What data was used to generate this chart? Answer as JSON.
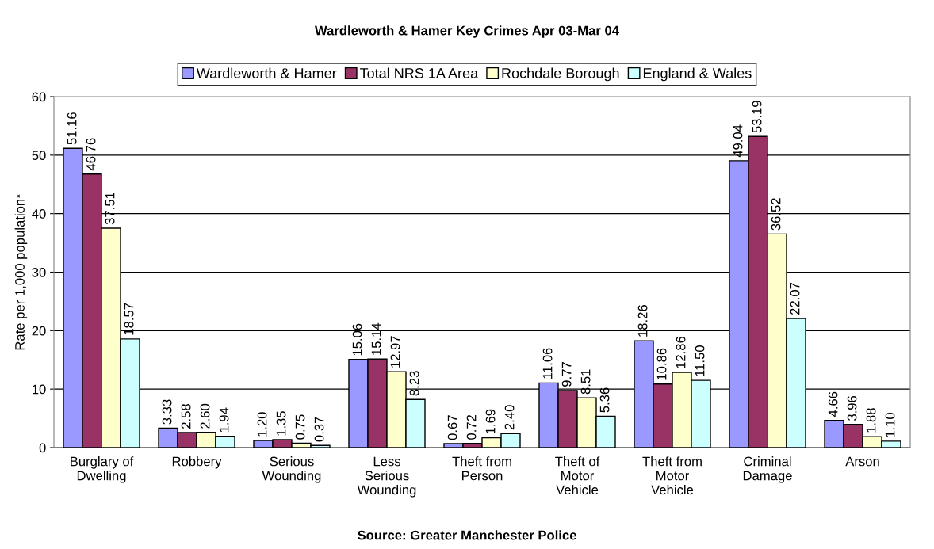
{
  "chart_data": {
    "type": "bar",
    "title": "Wardleworth & Hamer Key Crimes Apr 03-Mar 04",
    "ylabel": "Rate per 1,000 population*",
    "annotations": [
      "Source: Greater Manchester Police"
    ],
    "categories": [
      "Burglary of\nDwelling",
      "Robbery",
      "Serious\nWounding",
      "Less\nSerious\nWounding",
      "Theft from\nPerson",
      "Theft of\nMotor\nVehicle",
      "Theft from\nMotor\nVehicle",
      "Criminal\nDamage",
      "Arson"
    ],
    "series": [
      {
        "name": "Wardleworth & Hamer",
        "color": "#9999ff",
        "values": [
          51.16,
          3.33,
          1.2,
          15.06,
          0.67,
          11.06,
          18.26,
          49.04,
          4.66
        ],
        "value_labels": [
          "51.16",
          "3.33",
          "1.20",
          "15.06",
          "0.67",
          "11.06",
          "18.26",
          "49.04",
          "4.66"
        ]
      },
      {
        "name": "Total NRS 1A Area",
        "color": "#993366",
        "values": [
          46.76,
          2.58,
          1.35,
          15.14,
          0.72,
          9.77,
          10.86,
          53.19,
          3.96
        ],
        "value_labels": [
          "46.76",
          "2.58",
          "1.35",
          "15.14",
          "0.72",
          "9.77",
          "10.86",
          "53.19",
          "3.96"
        ]
      },
      {
        "name": "Rochdale Borough",
        "color": "#ffffcc",
        "values": [
          37.51,
          2.6,
          0.75,
          12.97,
          1.69,
          8.51,
          12.86,
          36.52,
          1.88
        ],
        "value_labels": [
          "37.51",
          "2.60",
          "0.75",
          "12.97",
          "1.69",
          "8.51",
          "12.86",
          "36.52",
          "1.88"
        ]
      },
      {
        "name": "England & Wales",
        "color": "#ccffff",
        "values": [
          18.57,
          1.94,
          0.37,
          8.23,
          2.4,
          5.36,
          11.5,
          22.07,
          1.1
        ],
        "value_labels": [
          "18.57",
          "1.94",
          "0.37",
          "8.23",
          "2.40",
          "5.36",
          "11.50",
          "22.07",
          "1.10"
        ]
      }
    ],
    "ylim": [
      0,
      60
    ],
    "yticks": [
      0,
      10,
      20,
      30,
      40,
      50,
      60
    ],
    "grid": "y",
    "legend": "top"
  }
}
